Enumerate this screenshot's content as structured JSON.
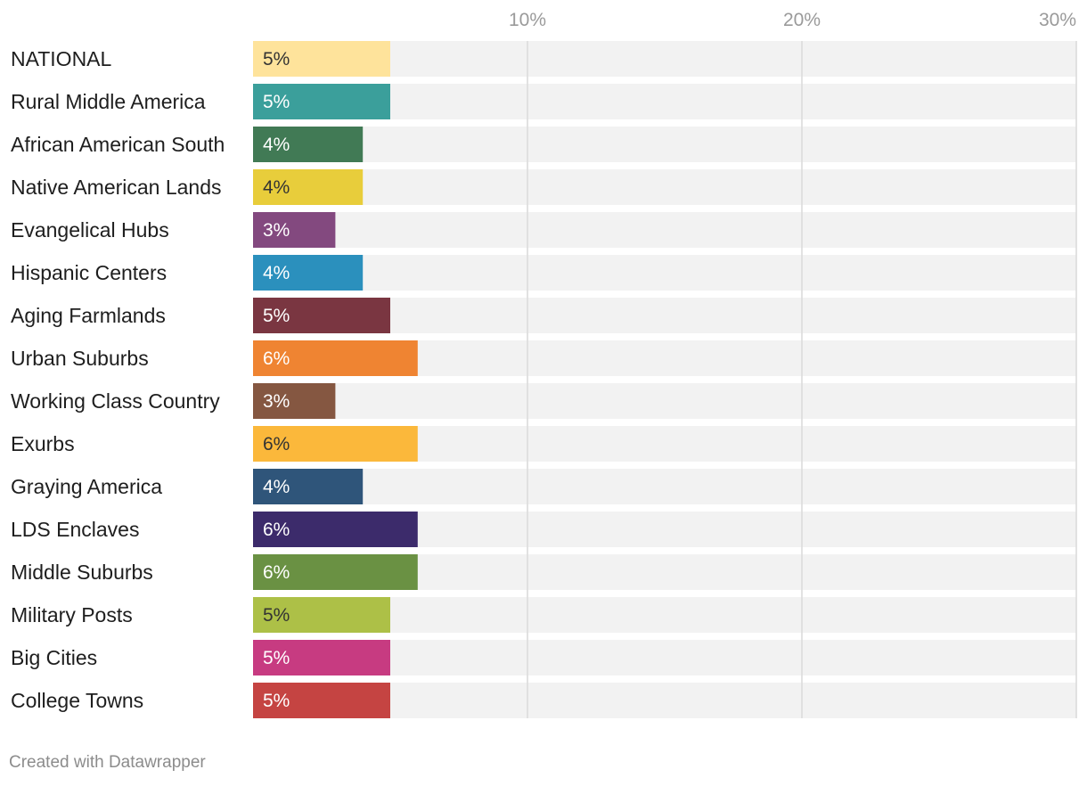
{
  "chart_data": {
    "type": "bar",
    "orientation": "horizontal",
    "categories": [
      "NATIONAL",
      "Rural Middle America",
      "African American South",
      "Native American Lands",
      "Evangelical Hubs",
      "Hispanic Centers",
      "Aging Farmlands",
      "Urban Suburbs",
      "Working Class Country",
      "Exurbs",
      "Graying America",
      "LDS Enclaves",
      "Middle Suburbs",
      "Military Posts",
      "Big Cities",
      "College Towns"
    ],
    "values": [
      5,
      5,
      4,
      4,
      3,
      4,
      5,
      6,
      3,
      6,
      4,
      6,
      6,
      5,
      5,
      5
    ],
    "value_labels": [
      "5%",
      "5%",
      "4%",
      "4%",
      "3%",
      "4%",
      "5%",
      "6%",
      "3%",
      "6%",
      "4%",
      "6%",
      "6%",
      "5%",
      "5%",
      "5%"
    ],
    "colors": [
      "#fee39b",
      "#3b9f9b",
      "#417a55",
      "#e8cd3b",
      "#83497f",
      "#2b90bd",
      "#7a3641",
      "#ef8432",
      "#855741",
      "#fbb83b",
      "#2f557a",
      "#3c2b6b",
      "#6a9143",
      "#adc047",
      "#c73b81",
      "#c54442"
    ],
    "value_label_colors": [
      "#333333",
      "#ffffff",
      "#ffffff",
      "#333333",
      "#ffffff",
      "#ffffff",
      "#ffffff",
      "#ffffff",
      "#ffffff",
      "#333333",
      "#ffffff",
      "#ffffff",
      "#ffffff",
      "#333333",
      "#ffffff",
      "#ffffff"
    ],
    "xlim": [
      0,
      30
    ],
    "ticks": [
      10,
      20,
      30
    ],
    "tick_labels": [
      "10%",
      "20%",
      "30%"
    ],
    "grid": true,
    "background_bar_color": "#f2f2f2"
  },
  "footer": {
    "credit": "Created with Datawrapper"
  }
}
